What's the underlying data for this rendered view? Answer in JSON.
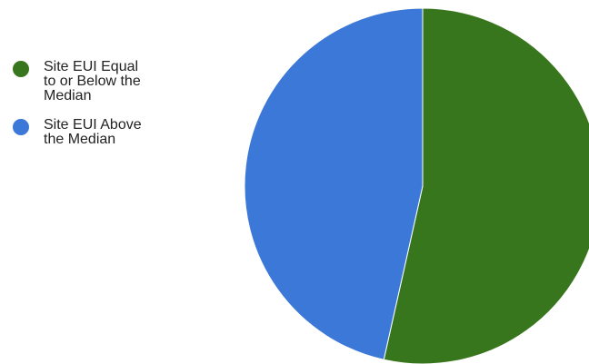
{
  "chart_data": {
    "type": "pie",
    "slices": [
      {
        "label": "Site EUI Equal\nto or Below the\nMedian",
        "value": 53.5,
        "color": "#38761d"
      },
      {
        "label": "Site EUI Above\nthe Median",
        "value": 46.5,
        "color": "#3c78d8"
      }
    ],
    "legend": "left",
    "start_angle_deg": 0,
    "direction": "clockwise"
  }
}
